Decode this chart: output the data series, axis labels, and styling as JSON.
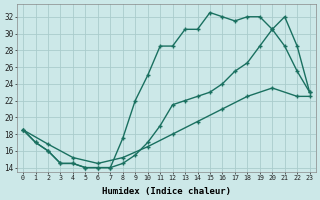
{
  "xlabel": "Humidex (Indice chaleur)",
  "bg_color": "#cce8e8",
  "grid_color": "#aacccc",
  "line_color": "#1a7060",
  "xlim": [
    -0.5,
    23.5
  ],
  "ylim": [
    13.5,
    33.5
  ],
  "ytick_vals": [
    14,
    16,
    18,
    20,
    22,
    24,
    26,
    28,
    30,
    32
  ],
  "curve1_x": [
    0,
    1,
    2,
    3,
    4,
    5,
    6,
    7,
    8,
    9,
    10,
    11,
    12,
    13,
    14,
    15,
    16,
    17,
    18,
    19,
    20,
    21,
    22,
    23
  ],
  "curve1_y": [
    18.5,
    17.0,
    16.0,
    14.5,
    14.5,
    14.0,
    14.0,
    14.0,
    17.5,
    22.0,
    25.0,
    28.5,
    28.5,
    30.5,
    30.5,
    32.5,
    32.0,
    31.5,
    32.0,
    32.0,
    30.5,
    28.5,
    25.5,
    23.0
  ],
  "curve2_x": [
    0,
    1,
    2,
    3,
    4,
    5,
    6,
    7,
    8,
    9,
    10,
    11,
    12,
    13,
    14,
    15,
    16,
    17,
    18,
    19,
    20,
    21,
    22,
    23
  ],
  "curve2_y": [
    18.5,
    17.0,
    16.0,
    14.5,
    14.5,
    14.0,
    14.0,
    14.0,
    14.5,
    15.5,
    17.0,
    19.0,
    21.5,
    22.0,
    22.5,
    23.0,
    24.0,
    25.5,
    26.5,
    28.5,
    30.5,
    32.0,
    28.5,
    23.0
  ],
  "curve3_x": [
    0,
    2,
    4,
    6,
    8,
    10,
    12,
    14,
    16,
    18,
    20,
    22,
    23
  ],
  "curve3_y": [
    18.5,
    16.8,
    15.2,
    14.5,
    15.2,
    16.5,
    18.0,
    19.5,
    21.0,
    22.5,
    23.5,
    22.5,
    22.5
  ]
}
